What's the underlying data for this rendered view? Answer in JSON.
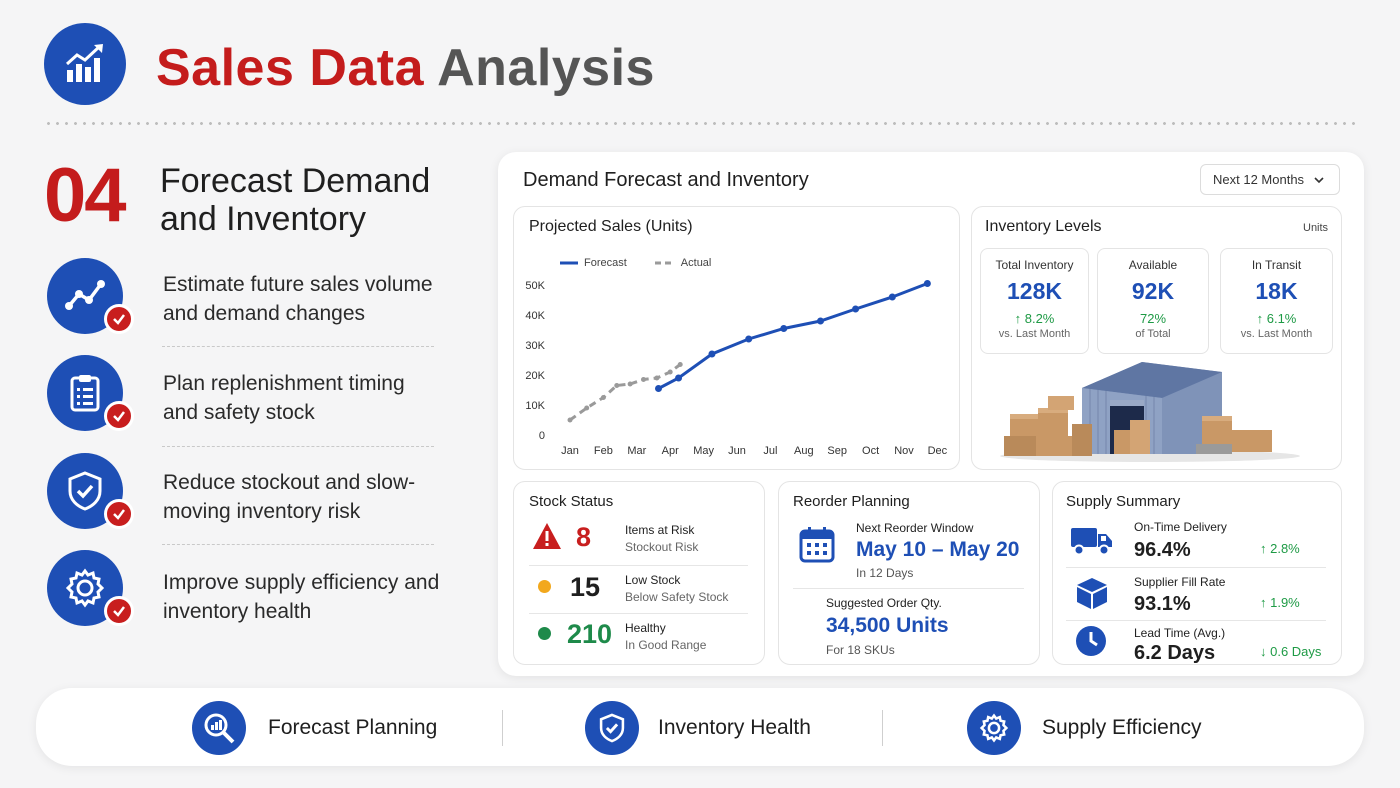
{
  "header": {
    "title_red": "Sales Data",
    "title_gray": "Analysis",
    "logo_icon": "bar-chart-up-icon"
  },
  "section": {
    "number": "04",
    "title": "Forecast Demand and Inventory"
  },
  "features": [
    {
      "icon": "trend-line-icon",
      "text": "Estimate future sales volume and demand changes"
    },
    {
      "icon": "clipboard-list-icon",
      "text": "Plan replenishment timing and safety stock"
    },
    {
      "icon": "shield-check-icon",
      "text": "Reduce stockout and slow-moving inventory risk"
    },
    {
      "icon": "gear-icon",
      "text": "Improve supply efficiency and inventory health"
    }
  ],
  "dashboard": {
    "title": "Demand Forecast and Inventory",
    "period_select": "Next 12 Months"
  },
  "projected_sales": {
    "title": "Projected Sales (Units)",
    "legend_forecast": "Forecast",
    "legend_actual": "Actual"
  },
  "chart_data": {
    "type": "line",
    "title": "Projected Sales (Units)",
    "x": [
      "Jan",
      "Feb",
      "Mar",
      "Apr",
      "May",
      "Jun",
      "Jul",
      "Aug",
      "Sep",
      "Oct",
      "Nov",
      "Dec"
    ],
    "y_ticks": [
      "0",
      "10K",
      "20K",
      "30K",
      "40K",
      "50K"
    ],
    "ylim": [
      0,
      50000
    ],
    "series": [
      {
        "name": "Actual",
        "style": "dashed",
        "color": "#9a9a9a",
        "x": [
          1.0,
          1.5,
          2.0,
          2.4,
          2.8,
          3.2,
          3.6,
          4.0,
          4.3
        ],
        "values": [
          5000,
          9000,
          12500,
          16500,
          17000,
          18500,
          19000,
          21000,
          23500
        ]
      },
      {
        "name": "Forecast",
        "style": "solid",
        "color": "#1e4fb5",
        "x": [
          3.65,
          4.25,
          5.25,
          6.35,
          7.4,
          8.5,
          9.55,
          10.65,
          11.7
        ],
        "values": [
          15500,
          19000,
          27000,
          32000,
          35500,
          38000,
          42000,
          46000,
          50500
        ]
      }
    ],
    "grid": false,
    "legend": "top-left"
  },
  "inventory": {
    "title": "Inventory Levels",
    "unit": "Units",
    "boxes": [
      {
        "label": "Total Inventory",
        "value": "128K",
        "change": "↑ 8.2%",
        "sub": "vs. Last Month",
        "change_color": "#1e9a45"
      },
      {
        "label": "Available",
        "value": "92K",
        "change": "72%",
        "sub": "of Total",
        "change_color": "#1e9a45"
      },
      {
        "label": "In Transit",
        "value": "18K",
        "change": "↑ 6.1%",
        "sub": "vs. Last Month",
        "change_color": "#1e9a45"
      }
    ]
  },
  "stock_status": {
    "title": "Stock Status",
    "rows": [
      {
        "icon": "warning-triangle-icon",
        "value": "8",
        "label": "Items at Risk",
        "sub": "Stockout Risk",
        "color": "#c81e1e"
      },
      {
        "icon": "yellow-dot-icon",
        "value": "15",
        "label": "Low Stock",
        "sub": "Below Safety Stock",
        "color": "#1f1f1f"
      },
      {
        "icon": "green-dot-icon",
        "value": "210",
        "label": "Healthy",
        "sub": "In Good Range",
        "color": "#1e8a4a"
      }
    ]
  },
  "reorder": {
    "title": "Reorder Planning",
    "window_label": "Next Reorder Window",
    "window_value": "May 10 – May 20",
    "window_sub": "In 12 Days",
    "qty_label": "Suggested Order Qty.",
    "qty_value": "34,500 Units",
    "qty_sub": "For 18 SKUs"
  },
  "supply": {
    "title": "Supply Summary",
    "rows": [
      {
        "icon": "truck-icon",
        "label": "On-Time Delivery",
        "value": "96.4%",
        "change": "↑ 2.8%",
        "change_color": "#1e9a45"
      },
      {
        "icon": "box-icon",
        "label": "Supplier Fill Rate",
        "value": "93.1%",
        "change": "↑ 1.9%",
        "change_color": "#1e9a45"
      },
      {
        "icon": "clock-icon",
        "label": "Lead Time (Avg.)",
        "value": "6.2 Days",
        "change": "↓ 0.6 Days",
        "change_color": "#1e9a45"
      }
    ]
  },
  "bottom": [
    {
      "icon": "magnifier-chart-icon",
      "label": "Forecast Planning"
    },
    {
      "icon": "shield-check-icon",
      "label": "Inventory Health"
    },
    {
      "icon": "gear-icon",
      "label": "Supply Efficiency"
    }
  ]
}
